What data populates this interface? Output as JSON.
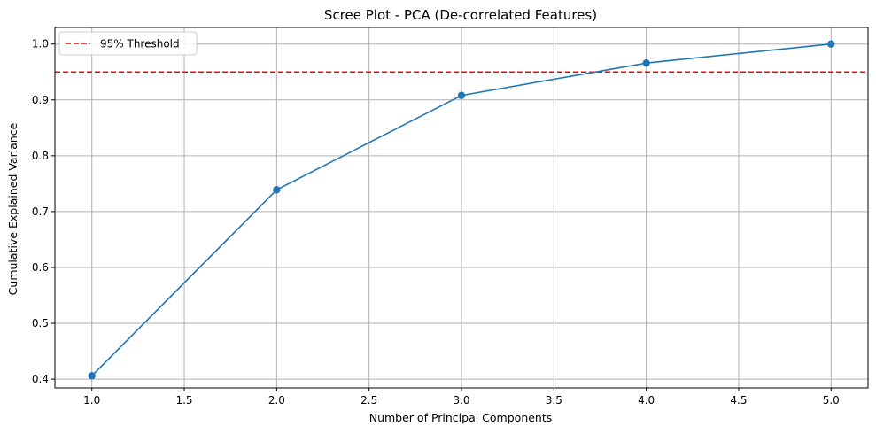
{
  "chart_data": {
    "type": "line",
    "title": "Scree Plot - PCA (De-correlated Features)",
    "xlabel": "Number of Principal Components",
    "ylabel": "Cumulative Explained Variance",
    "x": [
      1,
      2,
      3,
      4,
      5
    ],
    "series": [
      {
        "values": [
          0.406,
          0.739,
          0.908,
          0.966,
          1.0
        ],
        "color": "#1f77b4",
        "marker": "circle"
      }
    ],
    "threshold": {
      "label": "95% Threshold",
      "value": 0.95,
      "color": "#ff0000",
      "style": "dashed"
    },
    "xlim": [
      0.8,
      5.2
    ],
    "ylim": [
      0.3843,
      1.0297
    ],
    "xticks": [
      1.0,
      1.5,
      2.0,
      2.5,
      3.0,
      3.5,
      4.0,
      4.5,
      5.0
    ],
    "xtick_labels": [
      "1.0",
      "1.5",
      "2.0",
      "2.5",
      "3.0",
      "3.5",
      "4.0",
      "4.5",
      "5.0"
    ],
    "yticks": [
      0.4,
      0.5,
      0.6,
      0.7,
      0.8,
      0.9,
      1.0
    ],
    "ytick_labels": [
      "0.4",
      "0.5",
      "0.6",
      "0.7",
      "0.8",
      "0.9",
      "1.0"
    ],
    "grid": true,
    "legend_position": "top-left"
  }
}
